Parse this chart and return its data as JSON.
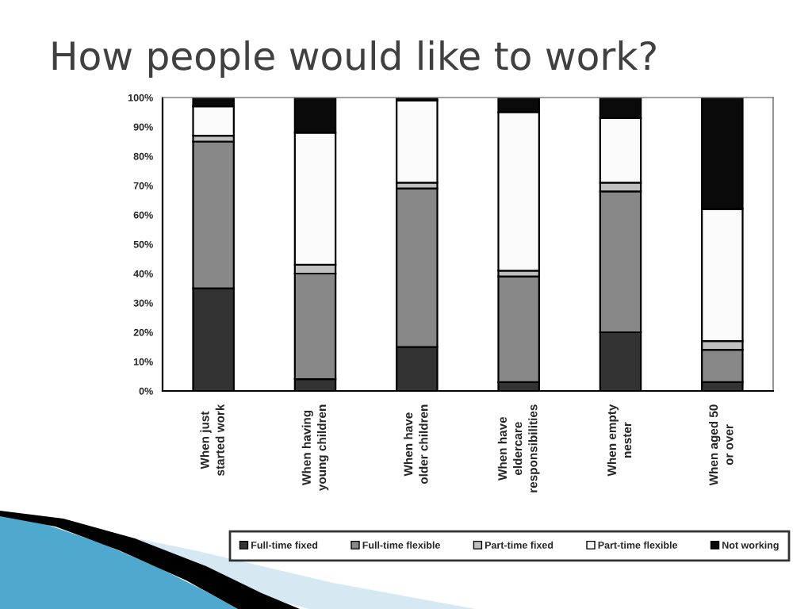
{
  "chart_data": {
    "type": "bar",
    "stacked": true,
    "title": "How people would like to work?",
    "categories": [
      "When just\nstarted work",
      "When having\nyoung children",
      "When have\nolder children",
      "When have\neldercare\nresponsibilities",
      "When empty\nnester",
      "When aged 50\nor over"
    ],
    "series": [
      {
        "name": "Full-time fixed",
        "color": "#333333",
        "values": [
          35,
          4,
          15,
          3,
          20,
          3
        ]
      },
      {
        "name": "Full-time flexible",
        "color": "#888888",
        "values": [
          50,
          36,
          54,
          36,
          48,
          11
        ]
      },
      {
        "name": "Part-time fixed",
        "color": "#c0c0c0",
        "values": [
          2,
          3,
          2,
          2,
          3,
          3
        ]
      },
      {
        "name": "Part-time flexible",
        "color": "#fafafa",
        "values": [
          10,
          45,
          28,
          54,
          22,
          45
        ]
      },
      {
        "name": "Not working",
        "color": "#0a0a0a",
        "values": [
          3,
          12,
          1,
          5,
          7,
          38
        ]
      }
    ],
    "ylim": [
      0,
      100
    ],
    "yticks": [
      {
        "value": 0,
        "label": "0%"
      },
      {
        "value": 10,
        "label": "10%"
      },
      {
        "value": 20,
        "label": "20%"
      },
      {
        "value": 30,
        "label": "30%"
      },
      {
        "value": 40,
        "label": "40%"
      },
      {
        "value": 50,
        "label": "50%"
      },
      {
        "value": 60,
        "label": "60%"
      },
      {
        "value": 70,
        "label": "70%"
      },
      {
        "value": 80,
        "label": "80%"
      },
      {
        "value": 90,
        "label": "90%"
      },
      {
        "value": 100,
        "label": "100%"
      }
    ],
    "grid": false,
    "legend": "bottom"
  }
}
